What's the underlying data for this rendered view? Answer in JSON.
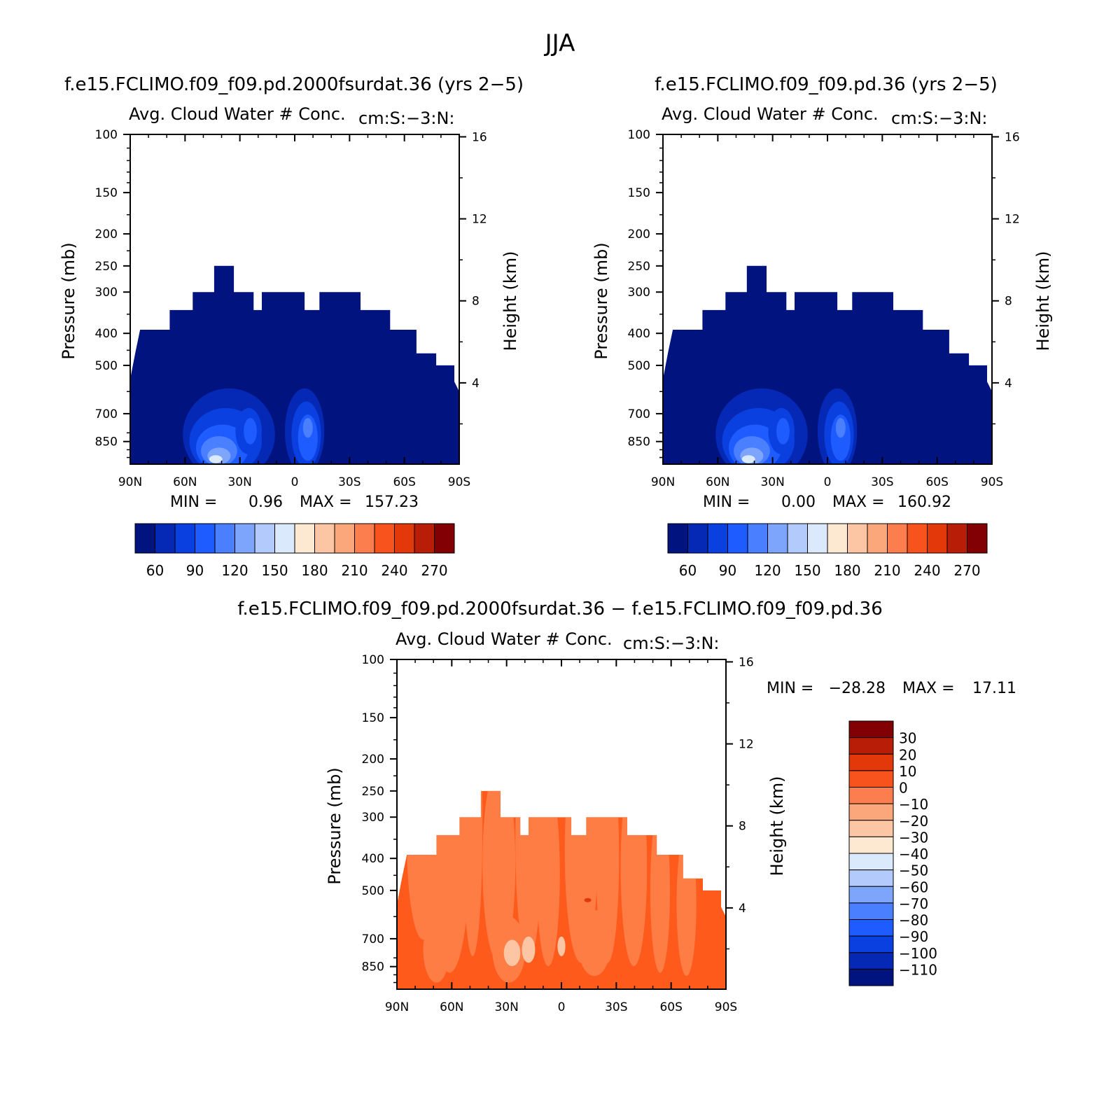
{
  "figure": {
    "season_title": "JJA",
    "diff_title": "f.e15.FCLIMO.f09_f09.pd.2000fsurdat.36 − f.e15.FCLIMO.f09_f09.pd.36"
  },
  "colors": {
    "cold_fill": "#00137f",
    "diff_main": "#fe5a1c",
    "diff_light": "#fe7d45"
  },
  "chart_data": [
    {
      "type": "heatmap",
      "title": "f.e15.FCLIMO.f09_f09.pd.2000fsurdat.36 (yrs 2−5)",
      "variable": "Avg. Cloud Water # Conc.",
      "units": "cm:S:−3:N:",
      "ylabel": "Pressure (mb)",
      "y2label": "Height (km)",
      "x_ticks": [
        "90N",
        "60N",
        "30N",
        "0",
        "30S",
        "60S",
        "90S"
      ],
      "y_ticks": [
        "100",
        "150",
        "200",
        "250",
        "300",
        "400",
        "500",
        "700",
        "850"
      ],
      "y2_ticks": [
        "16",
        "12",
        "8",
        "4"
      ],
      "min_label": "MIN =",
      "min_value": "0.96",
      "max_label": "MAX =",
      "max_value": "157.23",
      "min": 0.96,
      "max": 157.23,
      "colorbar_labels": [
        "60",
        "90",
        "120",
        "150",
        "180",
        "210",
        "240",
        "270"
      ],
      "colorbar_colors": [
        "#00137f",
        "#0529b5",
        "#0a3fe0",
        "#1f5cff",
        "#4a80ff",
        "#7ea5fc",
        "#b3cbfc",
        "#dae9fc",
        "#fde8d2",
        "#fcc6a5",
        "#fca67c",
        "#fc7d4e",
        "#f8521d",
        "#e2380a",
        "#b81d08",
        "#820004"
      ]
    },
    {
      "type": "heatmap",
      "title": "f.e15.FCLIMO.f09_f09.pd.36 (yrs 2−5)",
      "variable": "Avg. Cloud Water # Conc.",
      "units": "cm:S:−3:N:",
      "ylabel": "Pressure (mb)",
      "y2label": "Height (km)",
      "x_ticks": [
        "90N",
        "60N",
        "30N",
        "0",
        "30S",
        "60S",
        "90S"
      ],
      "y_ticks": [
        "100",
        "150",
        "200",
        "250",
        "300",
        "400",
        "500",
        "700",
        "850"
      ],
      "y2_ticks": [
        "16",
        "12",
        "8",
        "4"
      ],
      "min_label": "MIN =",
      "min_value": "0.00",
      "max_label": "MAX =",
      "max_value": "160.92",
      "min": 0.0,
      "max": 160.92,
      "colorbar_labels": [
        "60",
        "90",
        "120",
        "150",
        "180",
        "210",
        "240",
        "270"
      ],
      "colorbar_colors": [
        "#00137f",
        "#0529b5",
        "#0a3fe0",
        "#1f5cff",
        "#4a80ff",
        "#7ea5fc",
        "#b3cbfc",
        "#dae9fc",
        "#fde8d2",
        "#fcc6a5",
        "#fca67c",
        "#fc7d4e",
        "#f8521d",
        "#e2380a",
        "#b81d08",
        "#820004"
      ]
    },
    {
      "type": "heatmap",
      "title": "f.e15.FCLIMO.f09_f09.pd.2000fsurdat.36 − f.e15.FCLIMO.f09_f09.pd.36",
      "variable": "Avg. Cloud Water # Conc.",
      "units": "cm:S:−3:N:",
      "ylabel": "Pressure (mb)",
      "y2label": "Height (km)",
      "x_ticks": [
        "90N",
        "60N",
        "30N",
        "0",
        "30S",
        "60S",
        "90S"
      ],
      "y_ticks": [
        "100",
        "150",
        "200",
        "250",
        "300",
        "400",
        "500",
        "700",
        "850"
      ],
      "y2_ticks": [
        "16",
        "12",
        "8",
        "4"
      ],
      "min_label": "MIN =",
      "min_value": "−28.28",
      "max_label": "MAX =",
      "max_value": "17.11",
      "min": -28.28,
      "max": 17.11,
      "colorbar_labels": [
        "30",
        "20",
        "10",
        "0",
        "−10",
        "−20",
        "−30",
        "−40",
        "−50",
        "−60",
        "−70",
        "−80",
        "−90",
        "−100",
        "−110"
      ],
      "colorbar_colors": [
        "#820004",
        "#b81d08",
        "#e2380a",
        "#f8521d",
        "#fc7d4e",
        "#fca67c",
        "#fcc6a5",
        "#fde8d2",
        "#dae9fc",
        "#b3cbfc",
        "#7ea5fc",
        "#4a80ff",
        "#1f5cff",
        "#0a3fe0",
        "#0529b5",
        "#00137f"
      ]
    }
  ]
}
